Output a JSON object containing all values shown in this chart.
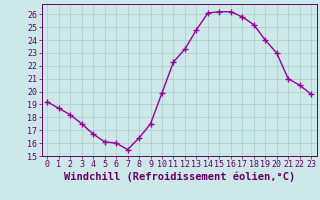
{
  "x": [
    0,
    1,
    2,
    3,
    4,
    5,
    6,
    7,
    8,
    9,
    10,
    11,
    12,
    13,
    14,
    15,
    16,
    17,
    18,
    19,
    20,
    21,
    22,
    23
  ],
  "y": [
    19.2,
    18.7,
    18.2,
    17.5,
    16.7,
    16.1,
    16.0,
    15.5,
    16.4,
    17.5,
    19.9,
    22.3,
    23.3,
    24.8,
    26.1,
    26.2,
    26.2,
    25.8,
    25.2,
    24.0,
    23.0,
    21.0,
    20.5,
    19.8
  ],
  "line_color": "#990099",
  "marker": "+",
  "markersize": 4,
  "linewidth": 1.0,
  "xlabel": "Windchill (Refroidissement éolien,°C)",
  "xlabel_fontsize": 7.5,
  "xlabel_color": "#660066",
  "xlim": [
    -0.5,
    23.5
  ],
  "ylim": [
    15,
    26.8
  ],
  "yticks": [
    15,
    16,
    17,
    18,
    19,
    20,
    21,
    22,
    23,
    24,
    25,
    26
  ],
  "xticks": [
    0,
    1,
    2,
    3,
    4,
    5,
    6,
    7,
    8,
    9,
    10,
    11,
    12,
    13,
    14,
    15,
    16,
    17,
    18,
    19,
    20,
    21,
    22,
    23
  ],
  "tick_fontsize": 6,
  "background_color": "#cce8e8",
  "grid_color": "#aacccc",
  "grid_linewidth": 0.5,
  "spine_color": "#660066",
  "tick_color": "#660066",
  "markeredgewidth": 1.0
}
